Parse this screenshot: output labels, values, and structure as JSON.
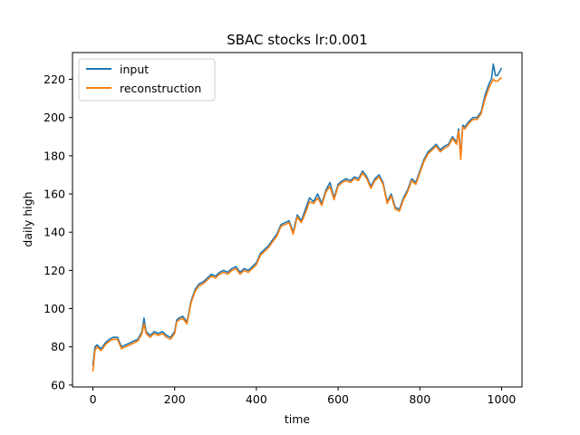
{
  "chart_data": {
    "type": "line",
    "title": "SBAC stocks lr:0.001",
    "xlabel": "time",
    "ylabel": "daily high",
    "xlim": [
      -50,
      1050
    ],
    "ylim": [
      59,
      234
    ],
    "xticks": [
      0,
      200,
      400,
      600,
      800,
      1000
    ],
    "yticks": [
      60,
      80,
      100,
      120,
      140,
      160,
      180,
      200,
      220
    ],
    "xtick_labels": [
      "0",
      "200",
      "400",
      "600",
      "800",
      "1000"
    ],
    "ytick_labels": [
      "60",
      "80",
      "100",
      "120",
      "140",
      "160",
      "180",
      "200",
      "220"
    ],
    "grid": false,
    "legend_position": "upper-left",
    "series": [
      {
        "name": "input",
        "color": "#1f77b4",
        "points": [
          [
            0,
            70
          ],
          [
            5,
            80
          ],
          [
            10,
            81
          ],
          [
            20,
            79
          ],
          [
            30,
            82
          ],
          [
            40,
            84
          ],
          [
            50,
            85
          ],
          [
            60,
            85
          ],
          [
            70,
            80
          ],
          [
            80,
            81
          ],
          [
            90,
            82
          ],
          [
            100,
            83
          ],
          [
            110,
            84
          ],
          [
            120,
            88
          ],
          [
            125,
            95
          ],
          [
            130,
            88
          ],
          [
            140,
            86
          ],
          [
            150,
            88
          ],
          [
            160,
            87
          ],
          [
            170,
            88
          ],
          [
            180,
            86
          ],
          [
            190,
            85
          ],
          [
            200,
            88
          ],
          [
            205,
            94
          ],
          [
            210,
            95
          ],
          [
            220,
            96
          ],
          [
            230,
            93
          ],
          [
            240,
            104
          ],
          [
            250,
            110
          ],
          [
            260,
            113
          ],
          [
            270,
            114
          ],
          [
            280,
            116
          ],
          [
            290,
            118
          ],
          [
            300,
            117
          ],
          [
            310,
            119
          ],
          [
            320,
            120
          ],
          [
            330,
            119
          ],
          [
            340,
            121
          ],
          [
            350,
            122
          ],
          [
            360,
            119
          ],
          [
            370,
            121
          ],
          [
            380,
            120
          ],
          [
            390,
            122
          ],
          [
            400,
            124
          ],
          [
            410,
            129
          ],
          [
            420,
            131
          ],
          [
            430,
            133
          ],
          [
            440,
            136
          ],
          [
            450,
            139
          ],
          [
            460,
            144
          ],
          [
            470,
            145
          ],
          [
            480,
            146
          ],
          [
            490,
            140
          ],
          [
            500,
            149
          ],
          [
            510,
            146
          ],
          [
            520,
            152
          ],
          [
            530,
            158
          ],
          [
            540,
            156
          ],
          [
            550,
            160
          ],
          [
            560,
            155
          ],
          [
            570,
            162
          ],
          [
            580,
            166
          ],
          [
            590,
            158
          ],
          [
            600,
            165
          ],
          [
            610,
            167
          ],
          [
            620,
            168
          ],
          [
            630,
            167
          ],
          [
            640,
            169
          ],
          [
            650,
            168
          ],
          [
            660,
            172
          ],
          [
            670,
            169
          ],
          [
            680,
            164
          ],
          [
            690,
            168
          ],
          [
            700,
            170
          ],
          [
            710,
            166
          ],
          [
            720,
            156
          ],
          [
            730,
            160
          ],
          [
            740,
            153
          ],
          [
            750,
            152
          ],
          [
            760,
            158
          ],
          [
            770,
            162
          ],
          [
            780,
            168
          ],
          [
            790,
            166
          ],
          [
            800,
            172
          ],
          [
            810,
            178
          ],
          [
            820,
            182
          ],
          [
            830,
            184
          ],
          [
            840,
            186
          ],
          [
            850,
            183
          ],
          [
            860,
            185
          ],
          [
            870,
            186
          ],
          [
            880,
            190
          ],
          [
            890,
            187
          ],
          [
            895,
            194
          ],
          [
            900,
            180
          ],
          [
            905,
            196
          ],
          [
            910,
            195
          ],
          [
            920,
            198
          ],
          [
            930,
            200
          ],
          [
            940,
            200
          ],
          [
            950,
            203
          ],
          [
            960,
            212
          ],
          [
            970,
            218
          ],
          [
            975,
            220
          ],
          [
            980,
            228
          ],
          [
            985,
            222
          ],
          [
            990,
            222
          ],
          [
            995,
            224
          ],
          [
            1000,
            226
          ]
        ]
      },
      {
        "name": "reconstruction",
        "color": "#ff7f0e",
        "points": [
          [
            0,
            67
          ],
          [
            5,
            78
          ],
          [
            10,
            80
          ],
          [
            20,
            78
          ],
          [
            30,
            81
          ],
          [
            40,
            83
          ],
          [
            50,
            84
          ],
          [
            60,
            84
          ],
          [
            70,
            79
          ],
          [
            80,
            80
          ],
          [
            90,
            81
          ],
          [
            100,
            82
          ],
          [
            110,
            83
          ],
          [
            120,
            87
          ],
          [
            125,
            92
          ],
          [
            130,
            87
          ],
          [
            140,
            85
          ],
          [
            150,
            87
          ],
          [
            160,
            86
          ],
          [
            170,
            87
          ],
          [
            180,
            85
          ],
          [
            190,
            84
          ],
          [
            200,
            87
          ],
          [
            205,
            93
          ],
          [
            210,
            94
          ],
          [
            220,
            95
          ],
          [
            230,
            92
          ],
          [
            240,
            103
          ],
          [
            250,
            109
          ],
          [
            260,
            112
          ],
          [
            270,
            113
          ],
          [
            280,
            115
          ],
          [
            290,
            117
          ],
          [
            300,
            116
          ],
          [
            310,
            118
          ],
          [
            320,
            119
          ],
          [
            330,
            118
          ],
          [
            340,
            120
          ],
          [
            350,
            121
          ],
          [
            360,
            118
          ],
          [
            370,
            120
          ],
          [
            380,
            119
          ],
          [
            390,
            121
          ],
          [
            400,
            123
          ],
          [
            410,
            128
          ],
          [
            420,
            130
          ],
          [
            430,
            132
          ],
          [
            440,
            135
          ],
          [
            450,
            138
          ],
          [
            460,
            143
          ],
          [
            470,
            144
          ],
          [
            480,
            145
          ],
          [
            490,
            139
          ],
          [
            500,
            148
          ],
          [
            510,
            145
          ],
          [
            520,
            150
          ],
          [
            530,
            156
          ],
          [
            540,
            155
          ],
          [
            550,
            158
          ],
          [
            560,
            154
          ],
          [
            570,
            161
          ],
          [
            580,
            164
          ],
          [
            590,
            157
          ],
          [
            600,
            164
          ],
          [
            610,
            166
          ],
          [
            620,
            167
          ],
          [
            630,
            166
          ],
          [
            640,
            168
          ],
          [
            650,
            167
          ],
          [
            660,
            171
          ],
          [
            670,
            168
          ],
          [
            680,
            163
          ],
          [
            690,
            167
          ],
          [
            700,
            169
          ],
          [
            710,
            165
          ],
          [
            720,
            155
          ],
          [
            730,
            159
          ],
          [
            740,
            152
          ],
          [
            750,
            151
          ],
          [
            760,
            157
          ],
          [
            770,
            161
          ],
          [
            780,
            167
          ],
          [
            790,
            165
          ],
          [
            800,
            171
          ],
          [
            810,
            177
          ],
          [
            820,
            181
          ],
          [
            830,
            183
          ],
          [
            840,
            185
          ],
          [
            850,
            182
          ],
          [
            860,
            184
          ],
          [
            870,
            185
          ],
          [
            880,
            189
          ],
          [
            890,
            186
          ],
          [
            895,
            193
          ],
          [
            900,
            178
          ],
          [
            905,
            195
          ],
          [
            910,
            194
          ],
          [
            920,
            197
          ],
          [
            930,
            199
          ],
          [
            940,
            199
          ],
          [
            950,
            202
          ],
          [
            960,
            210
          ],
          [
            970,
            216
          ],
          [
            975,
            218
          ],
          [
            980,
            220
          ],
          [
            985,
            219
          ],
          [
            990,
            219
          ],
          [
            995,
            220
          ],
          [
            1000,
            221
          ]
        ]
      }
    ]
  }
}
